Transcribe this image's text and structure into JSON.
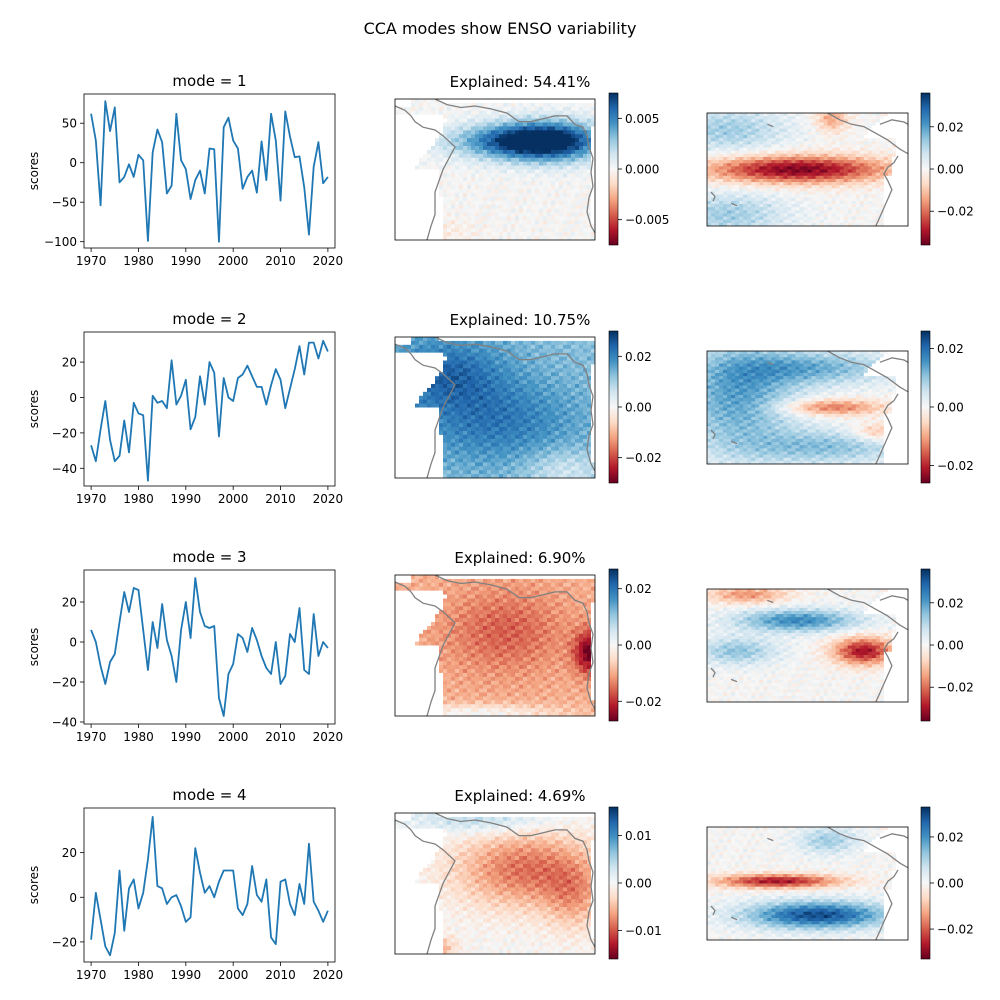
{
  "figure": {
    "suptitle": "CCA modes show ENSO variability"
  },
  "colormap": {
    "name": "RdBu",
    "stops": [
      "#67001f",
      "#b2182b",
      "#d6604d",
      "#f4a582",
      "#fddbc7",
      "#f7f7f7",
      "#d1e5f0",
      "#92c5de",
      "#4393c3",
      "#2166ac",
      "#053061"
    ]
  },
  "style": {
    "line_color": "#1f77b4",
    "coast_color": "#808080"
  },
  "chart_data": [
    {
      "type": "line",
      "mode": 1,
      "title": "mode = 1",
      "ylabel": "scores",
      "x_start": 1970,
      "xticks": [
        1970,
        1980,
        1990,
        2000,
        2010,
        2020
      ],
      "xlim": [
        1968.5,
        2021.5
      ],
      "yticks": [
        -100,
        -50,
        0,
        50
      ],
      "ylim": [
        -108,
        87
      ],
      "values": [
        62,
        28,
        -54,
        78,
        40,
        70,
        -25,
        -18,
        -2,
        -18,
        10,
        3,
        -99,
        13,
        42,
        26,
        -39,
        -29,
        62,
        3,
        -8,
        -46,
        -22,
        -10,
        -39,
        18,
        17,
        -100,
        45,
        57,
        28,
        18,
        -33,
        -18,
        -10,
        -38,
        27,
        -22,
        62,
        28,
        -48,
        65,
        33,
        7,
        8,
        -31,
        -91,
        -5,
        26,
        -26,
        -18
      ]
    },
    {
      "type": "heatmap",
      "mode": 1,
      "title": "Explained: 54.41%",
      "region": "Tropical Atlantic (left field)",
      "pattern": "atlantic_mode1",
      "colorbar_ticks": [
        0.005,
        0.0,
        -0.005
      ],
      "colorbar_tick_labels": [
        "0.005",
        "0.000",
        "−0.005"
      ],
      "vlim": [
        -0.0075,
        0.0075
      ]
    },
    {
      "type": "heatmap",
      "mode": 1,
      "title": "",
      "region": "Tropical Pacific (right field)",
      "pattern": "pacific_mode1",
      "colorbar_ticks": [
        0.02,
        0.0,
        -0.02
      ],
      "colorbar_tick_labels": [
        "0.02",
        "0.00",
        "−0.02"
      ],
      "vlim": [
        -0.036,
        0.036
      ]
    },
    {
      "type": "line",
      "mode": 2,
      "title": "mode = 2",
      "ylabel": "scores",
      "x_start": 1970,
      "xticks": [
        1970,
        1980,
        1990,
        2000,
        2010,
        2020
      ],
      "xlim": [
        1968.5,
        2021.5
      ],
      "yticks": [
        -40,
        -20,
        0,
        20
      ],
      "ylim": [
        -50,
        37
      ],
      "values": [
        -27,
        -36,
        -18,
        -2,
        -24,
        -36,
        -33,
        -13,
        -31,
        -3,
        -9,
        -10,
        -47,
        1,
        -3,
        -2,
        -6,
        21,
        -4,
        1,
        10,
        -18,
        -11,
        12,
        -4,
        20,
        14,
        -22,
        11,
        0,
        -2,
        11,
        13,
        18,
        12,
        6,
        6,
        -4,
        7,
        16,
        10,
        -6,
        5,
        16,
        29,
        13,
        31,
        31,
        22,
        32,
        26
      ]
    },
    {
      "type": "heatmap",
      "mode": 2,
      "title": "Explained: 10.75%",
      "region": "Tropical Atlantic (left field)",
      "pattern": "atlantic_mode2",
      "colorbar_ticks": [
        0.02,
        0.0,
        -0.02
      ],
      "colorbar_tick_labels": [
        "0.02",
        "0.00",
        "−0.02"
      ],
      "vlim": [
        -0.03,
        0.03
      ]
    },
    {
      "type": "heatmap",
      "mode": 2,
      "title": "",
      "region": "Tropical Pacific (right field)",
      "pattern": "pacific_mode2",
      "colorbar_ticks": [
        0.02,
        0.0,
        -0.02
      ],
      "colorbar_tick_labels": [
        "0.02",
        "0.00",
        "−0.02"
      ],
      "vlim": [
        -0.026,
        0.026
      ]
    },
    {
      "type": "line",
      "mode": 3,
      "title": "mode = 3",
      "ylabel": "scores",
      "x_start": 1970,
      "xticks": [
        1970,
        1980,
        1990,
        2000,
        2010,
        2020
      ],
      "xlim": [
        1968.5,
        2021.5
      ],
      "yticks": [
        -40,
        -20,
        0,
        20
      ],
      "ylim": [
        -41,
        36
      ],
      "values": [
        6,
        0,
        -12,
        -21,
        -10,
        -6,
        10,
        25,
        15,
        27,
        26,
        6,
        -14,
        10,
        -3,
        19,
        1,
        -7,
        -20,
        6,
        20,
        2,
        32,
        15,
        8,
        7,
        8,
        -28,
        -37,
        -16,
        -11,
        4,
        2,
        -5,
        7,
        1,
        -7,
        -13,
        -16,
        0,
        -21,
        -17,
        4,
        0,
        17,
        -14,
        -16,
        14,
        -7,
        0,
        -3
      ]
    },
    {
      "type": "heatmap",
      "mode": 3,
      "title": "Explained: 6.90%",
      "region": "Tropical Atlantic (left field)",
      "pattern": "atlantic_mode3",
      "colorbar_ticks": [
        0.02,
        0.0,
        -0.02
      ],
      "colorbar_tick_labels": [
        "0.02",
        "0.00",
        "−0.02"
      ],
      "vlim": [
        -0.027,
        0.027
      ]
    },
    {
      "type": "heatmap",
      "mode": 3,
      "title": "",
      "region": "Tropical Pacific (right field)",
      "pattern": "pacific_mode3",
      "colorbar_ticks": [
        0.02,
        0.0,
        -0.02
      ],
      "colorbar_tick_labels": [
        "0.02",
        "0.00",
        "−0.02"
      ],
      "vlim": [
        -0.036,
        0.036
      ]
    },
    {
      "type": "line",
      "mode": 4,
      "title": "mode = 4",
      "ylabel": "scores",
      "x_start": 1970,
      "xticks": [
        1970,
        1980,
        1990,
        2000,
        2010,
        2020
      ],
      "xlim": [
        1968.5,
        2021.5
      ],
      "yticks": [
        -20,
        0,
        20
      ],
      "ylim": [
        -29,
        40
      ],
      "values": [
        -19,
        2,
        -10,
        -22,
        -26,
        -16,
        12,
        -15,
        4,
        8,
        -5,
        2,
        17,
        36,
        5,
        4,
        -3,
        0,
        1,
        -4,
        -11,
        -9,
        22,
        11,
        2,
        5,
        0,
        7,
        12,
        12,
        12,
        -5,
        -8,
        -3,
        14,
        1,
        -2,
        8,
        -18,
        -21,
        7,
        8,
        -3,
        -8,
        6,
        -3,
        24,
        -2,
        -6,
        -11,
        -6
      ]
    },
    {
      "type": "heatmap",
      "mode": 4,
      "title": "Explained: 4.69%",
      "region": "Tropical Atlantic (left field)",
      "pattern": "atlantic_mode4",
      "colorbar_ticks": [
        0.01,
        0.0,
        -0.01
      ],
      "colorbar_tick_labels": [
        "0.01",
        "0.00",
        "−0.01"
      ],
      "vlim": [
        -0.016,
        0.016
      ]
    },
    {
      "type": "heatmap",
      "mode": 4,
      "title": "",
      "region": "Tropical Pacific (right field)",
      "pattern": "pacific_mode4",
      "colorbar_ticks": [
        0.02,
        0.0,
        -0.02
      ],
      "colorbar_tick_labels": [
        "0.02",
        "0.00",
        "−0.02"
      ],
      "vlim": [
        -0.033,
        0.033
      ]
    }
  ]
}
